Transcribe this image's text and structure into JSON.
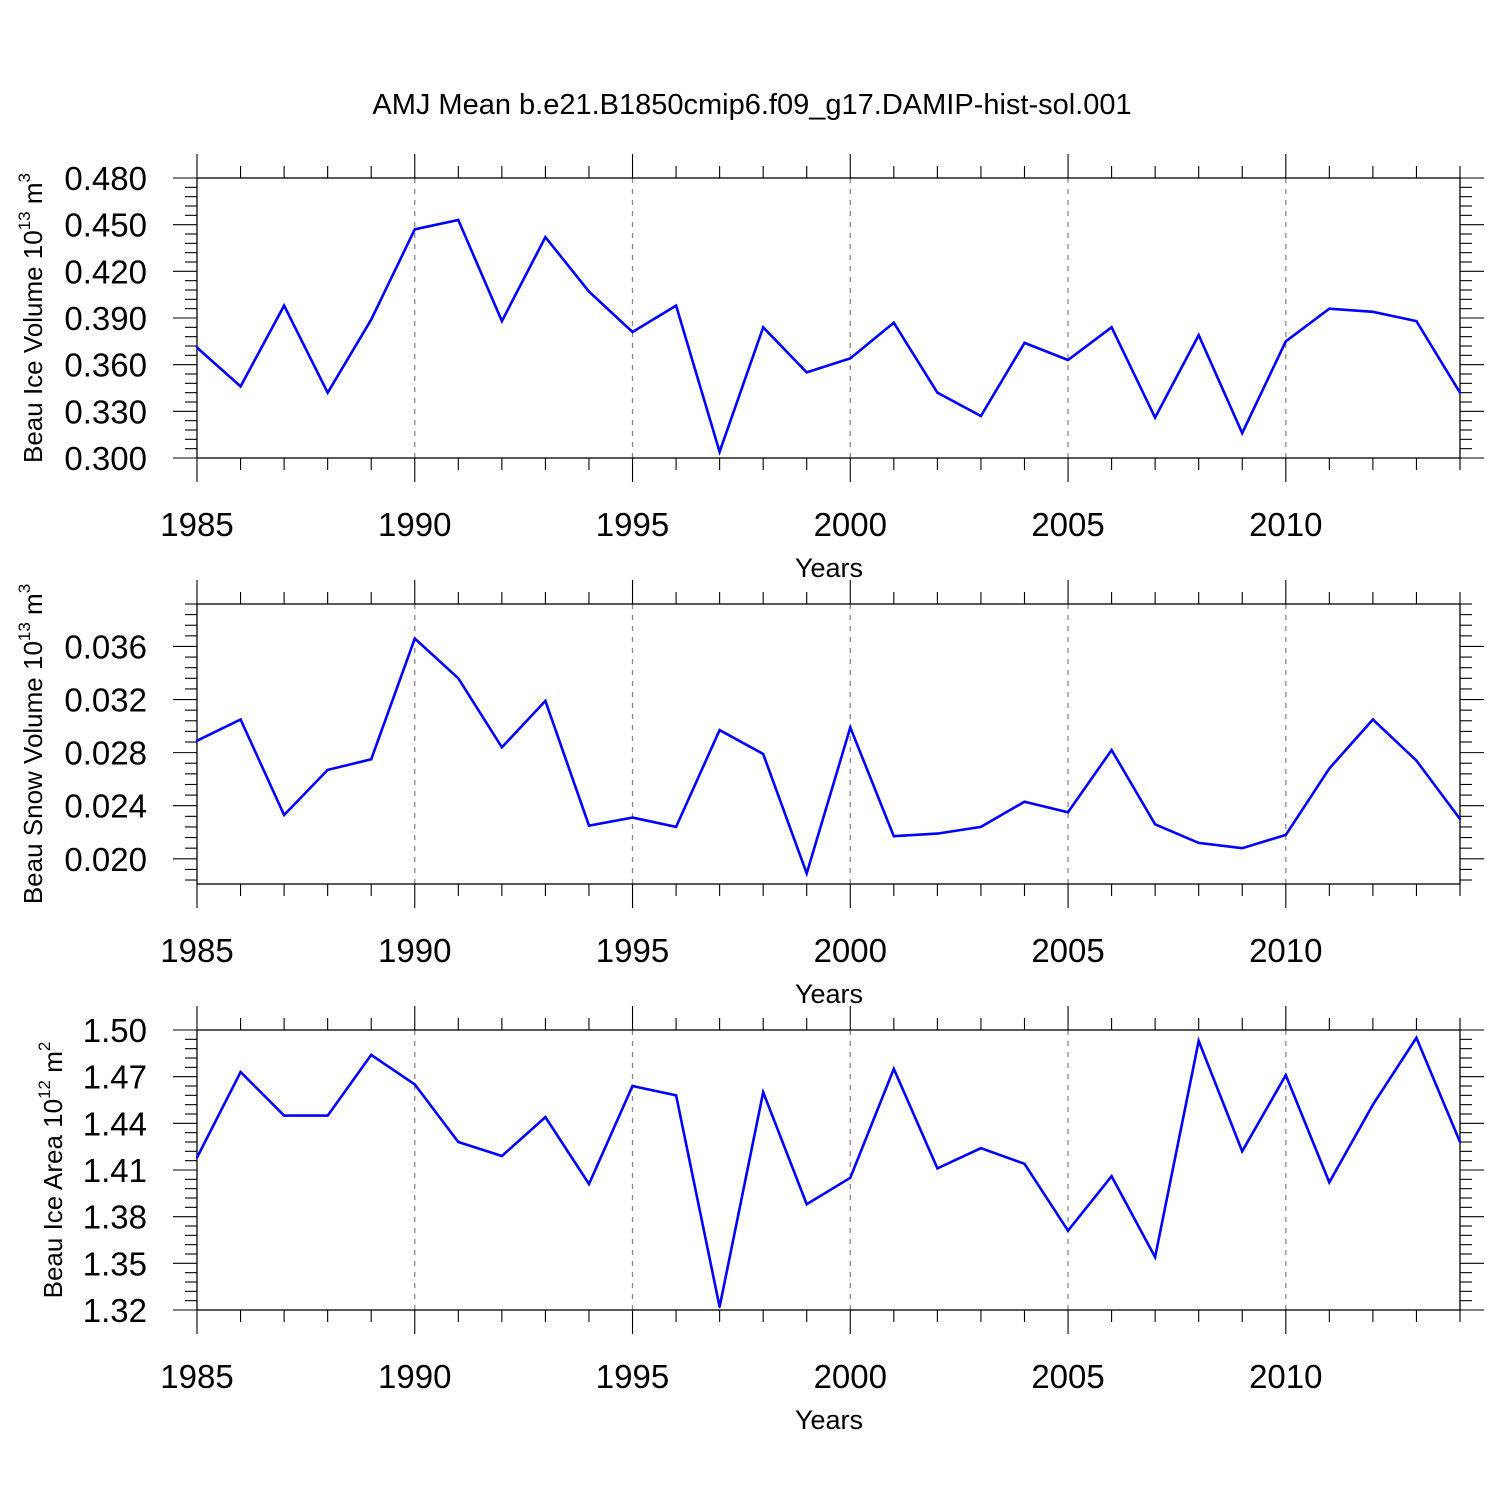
{
  "chart_data": [
    {
      "type": "line",
      "title": "AMJ Mean b.e21.B1850cmip6.f09_g17.DAMIP-hist-sol.001",
      "xlabel": "Years",
      "ylabel": {
        "base": "Beau Ice Volume 10",
        "exp": "13",
        "unit": " m",
        "unit_exp": "3"
      },
      "xlim": [
        1985,
        2014
      ],
      "ylim": [
        0.3,
        0.48
      ],
      "yticks": [
        0.3,
        0.33,
        0.36,
        0.39,
        0.42,
        0.45,
        0.48
      ],
      "ytick_labels": [
        "0.300",
        "0.330",
        "0.360",
        "0.390",
        "0.420",
        "0.450",
        "0.480"
      ],
      "xticks": [
        1985,
        1990,
        1995,
        2000,
        2005,
        2010
      ],
      "xtick_labels": [
        "1985",
        "1990",
        "1995",
        "2000",
        "2005",
        "2010"
      ],
      "grid": "vertical dashed at labeled years",
      "color": "#0000ff",
      "x": [
        1985,
        1986,
        1987,
        1988,
        1989,
        1990,
        1991,
        1992,
        1993,
        1994,
        1995,
        1996,
        1997,
        1998,
        1999,
        2000,
        2001,
        2002,
        2003,
        2004,
        2005,
        2006,
        2007,
        2008,
        2009,
        2010,
        2011,
        2012,
        2013,
        2014
      ],
      "values": [
        0.371,
        0.346,
        0.398,
        0.342,
        0.389,
        0.447,
        0.453,
        0.388,
        0.442,
        0.407,
        0.381,
        0.398,
        0.304,
        0.384,
        0.355,
        0.364,
        0.387,
        0.342,
        0.327,
        0.374,
        0.363,
        0.384,
        0.326,
        0.379,
        0.316,
        0.375,
        0.396,
        0.394,
        0.388,
        0.342
      ]
    },
    {
      "type": "line",
      "title": "",
      "xlabel": "Years",
      "ylabel": {
        "base": "Beau Snow Volume 10",
        "exp": "13",
        "unit": " m",
        "unit_exp": "3"
      },
      "xlim": [
        1985,
        2014
      ],
      "ylim": [
        0.0181,
        0.0392
      ],
      "yticks": [
        0.02,
        0.024,
        0.028,
        0.032,
        0.036
      ],
      "ytick_labels": [
        "0.020",
        "0.024",
        "0.028",
        "0.032",
        "0.036"
      ],
      "xticks": [
        1985,
        1990,
        1995,
        2000,
        2005,
        2010
      ],
      "xtick_labels": [
        "1985",
        "1990",
        "1995",
        "2000",
        "2005",
        "2010"
      ],
      "grid": "vertical dashed at labeled years",
      "color": "#0000ff",
      "x": [
        1985,
        1986,
        1987,
        1988,
        1989,
        1990,
        1991,
        1992,
        1993,
        1994,
        1995,
        1996,
        1997,
        1998,
        1999,
        2000,
        2001,
        2002,
        2003,
        2004,
        2005,
        2006,
        2007,
        2008,
        2009,
        2010,
        2011,
        2012,
        2013,
        2014
      ],
      "values": [
        0.0289,
        0.0305,
        0.0233,
        0.0267,
        0.0275,
        0.0366,
        0.0336,
        0.0284,
        0.0319,
        0.0225,
        0.0231,
        0.0224,
        0.0297,
        0.0279,
        0.0189,
        0.0299,
        0.0217,
        0.0219,
        0.0224,
        0.0243,
        0.0235,
        0.0282,
        0.0226,
        0.0212,
        0.0208,
        0.0218,
        0.0268,
        0.0305,
        0.0274,
        0.023
      ]
    },
    {
      "type": "line",
      "title": "",
      "xlabel": "Years",
      "ylabel": {
        "base": "Beau Ice Area 10",
        "exp": "12",
        "unit": " m",
        "unit_exp": "2"
      },
      "xlim": [
        1985,
        2014
      ],
      "ylim": [
        1.32,
        1.5
      ],
      "yticks": [
        1.32,
        1.35,
        1.38,
        1.41,
        1.44,
        1.47,
        1.5
      ],
      "ytick_labels": [
        "1.32",
        "1.35",
        "1.38",
        "1.41",
        "1.44",
        "1.47",
        "1.50"
      ],
      "xticks": [
        1985,
        1990,
        1995,
        2000,
        2005,
        2010
      ],
      "xtick_labels": [
        "1985",
        "1990",
        "1995",
        "2000",
        "2005",
        "2010"
      ],
      "grid": "vertical dashed at labeled years",
      "color": "#0000ff",
      "x": [
        1985,
        1986,
        1987,
        1988,
        1989,
        1990,
        1991,
        1992,
        1993,
        1994,
        1995,
        1996,
        1997,
        1998,
        1999,
        2000,
        2001,
        2002,
        2003,
        2004,
        2005,
        2006,
        2007,
        2008,
        2009,
        2010,
        2011,
        2012,
        2013,
        2014
      ],
      "values": [
        1.418,
        1.473,
        1.445,
        1.445,
        1.484,
        1.465,
        1.428,
        1.419,
        1.444,
        1.401,
        1.464,
        1.458,
        1.322,
        1.46,
        1.388,
        1.405,
        1.475,
        1.411,
        1.424,
        1.414,
        1.371,
        1.406,
        1.354,
        1.493,
        1.422,
        1.471,
        1.402,
        1.452,
        1.495,
        1.428
      ]
    }
  ]
}
